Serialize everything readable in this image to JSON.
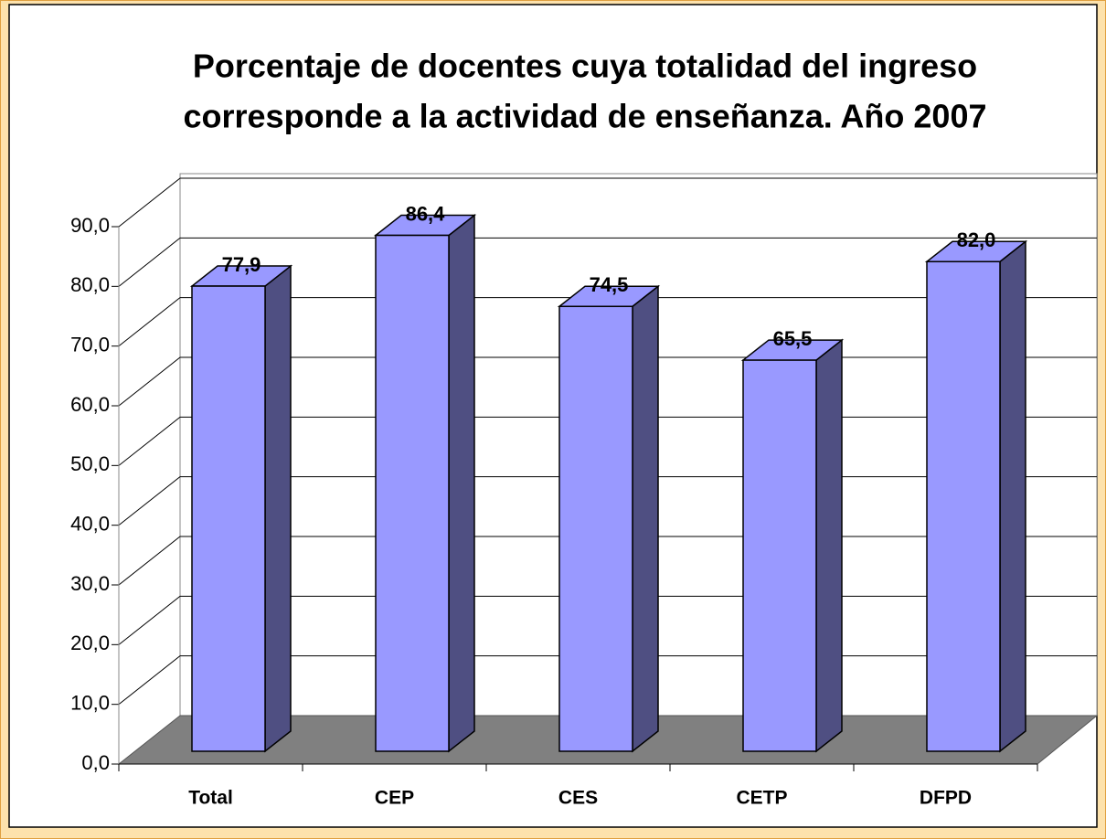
{
  "chart_data": {
    "type": "bar3d",
    "title": "Porcentaje de docentes cuya totalidad del ingreso corresponde a la actividad de enseñanza.  Año 2007",
    "title_lines": [
      "Porcentaje de docentes cuya totalidad del ingreso",
      "corresponde a la actividad de enseñanza.  Año 2007"
    ],
    "categories": [
      "Total",
      "CEP",
      "CES",
      "CETP",
      "DFPD"
    ],
    "values": [
      77.9,
      86.4,
      74.5,
      65.5,
      82.0
    ],
    "value_labels": [
      "77,9",
      "86,4",
      "74,5",
      "65,5",
      "82,0"
    ],
    "color": "#9999ff",
    "side_color": "#4f4f82",
    "floor_color": "#808080",
    "ylim": [
      0,
      90
    ],
    "yticks": [
      {
        "value": 0,
        "label": "0,0"
      },
      {
        "value": 10,
        "label": "10,0"
      },
      {
        "value": 20,
        "label": "20,0"
      },
      {
        "value": 30,
        "label": "30,0"
      },
      {
        "value": 40,
        "label": "40,0"
      },
      {
        "value": 50,
        "label": "50,0"
      },
      {
        "value": 60,
        "label": "60,0"
      },
      {
        "value": 70,
        "label": "70,0"
      },
      {
        "value": 80,
        "label": "80,0"
      },
      {
        "value": 90,
        "label": "90,0"
      }
    ],
    "grid": true
  }
}
